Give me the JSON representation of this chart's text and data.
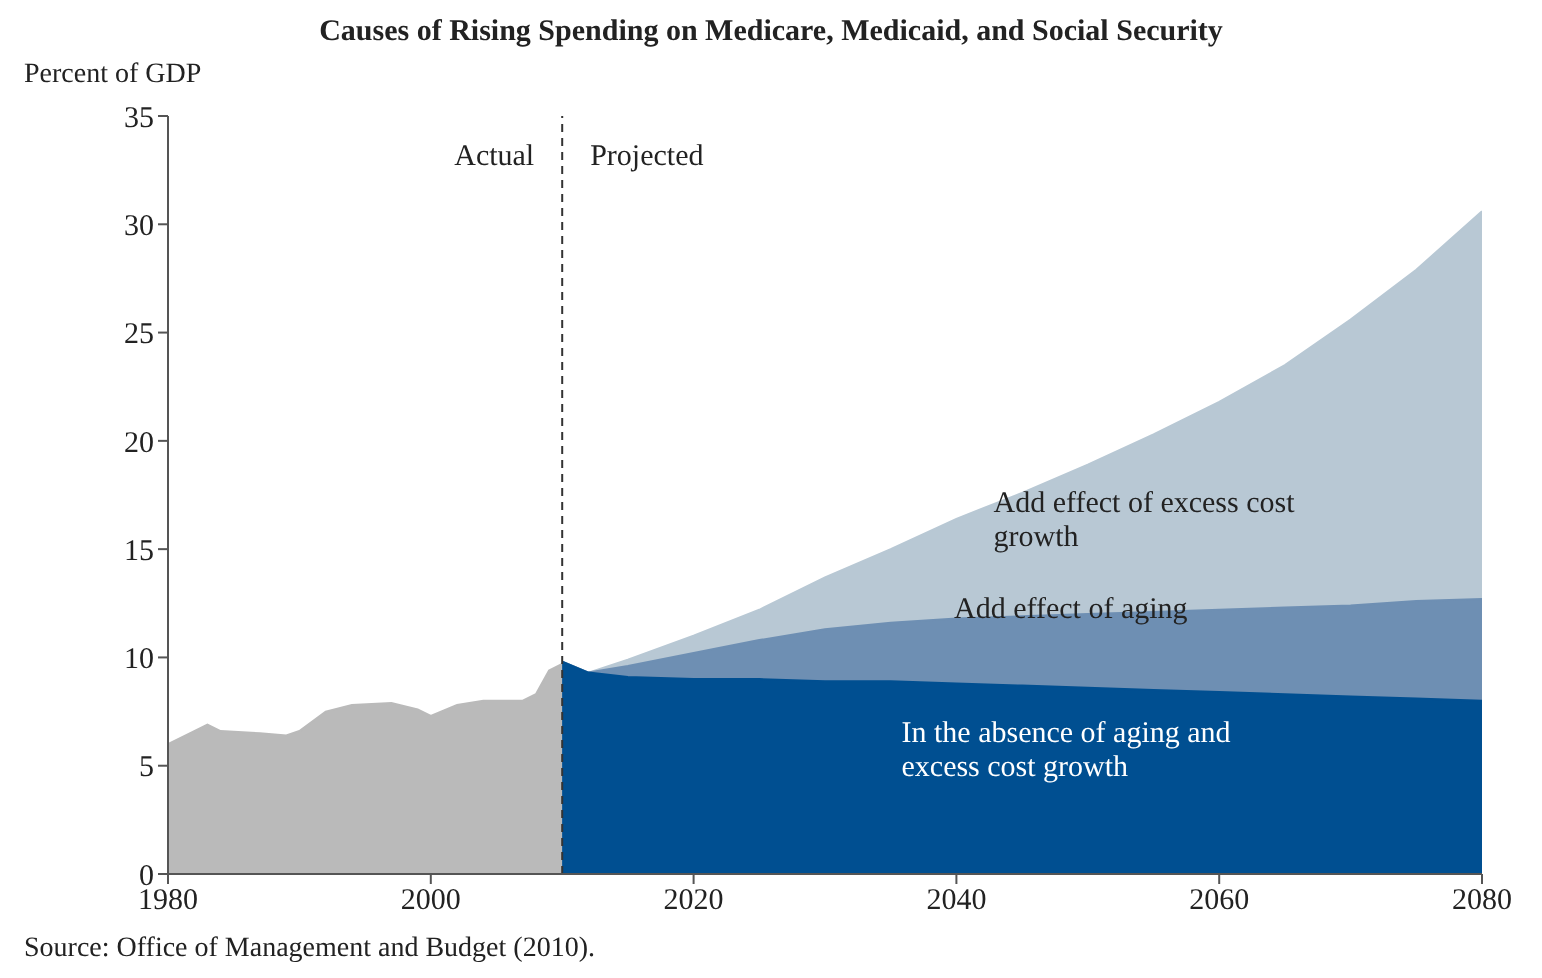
{
  "chart_data": {
    "type": "area",
    "title": "Causes of Rising Spending on Medicare, Medicaid, and Social Security",
    "ylabel": "Percent of GDP",
    "annotations": [
      "Actual",
      "Projected",
      "Source:  Office of Management and Budget (2010)."
    ],
    "xlim": [
      1980,
      2080
    ],
    "xticks": [
      1980,
      2000,
      2020,
      2040,
      2060,
      2080
    ],
    "ylim": [
      0,
      35
    ],
    "yticks": [
      0,
      5,
      10,
      15,
      20,
      25,
      30,
      35
    ],
    "ref_lines": [
      {
        "axis": "x",
        "value": 2010,
        "color": "#333333",
        "line_style": "dashed"
      }
    ],
    "series": [
      {
        "color": "#bababa",
        "x": [
          1980,
          1982,
          1983,
          1984,
          1987,
          1989,
          1990,
          1992,
          1994,
          1997,
          1999,
          2000,
          2002,
          2004,
          2007,
          2008,
          2009,
          2010
        ],
        "values": [
          6.0,
          6.6,
          6.9,
          6.6,
          6.5,
          6.4,
          6.6,
          7.5,
          7.8,
          7.9,
          7.6,
          7.3,
          7.8,
          8.0,
          8.0,
          8.3,
          9.4,
          9.7
        ]
      },
      {
        "name": "Add effect of excess cost growth",
        "color": "#b8c8d4",
        "x": [
          2010,
          2012,
          2015,
          2020,
          2025,
          2030,
          2035,
          2040,
          2045,
          2050,
          2055,
          2060,
          2065,
          2070,
          2075,
          2080
        ],
        "values": [
          9.8,
          9.3,
          9.9,
          11.0,
          12.2,
          13.7,
          15.0,
          16.4,
          17.6,
          18.9,
          20.3,
          21.8,
          23.5,
          25.6,
          27.9,
          30.6
        ]
      },
      {
        "name": "Add effect of aging",
        "color": "#6e8fb3",
        "x": [
          2010,
          2012,
          2015,
          2020,
          2025,
          2030,
          2035,
          2040,
          2045,
          2050,
          2055,
          2060,
          2065,
          2070,
          2075,
          2080
        ],
        "values": [
          9.8,
          9.3,
          9.6,
          10.2,
          10.8,
          11.3,
          11.6,
          11.8,
          11.9,
          12.0,
          12.1,
          12.2,
          12.3,
          12.4,
          12.6,
          12.7
        ]
      },
      {
        "name": "In the absence of aging and excess cost growth",
        "color": "#004f91",
        "x": [
          2010,
          2012,
          2015,
          2020,
          2025,
          2030,
          2035,
          2040,
          2045,
          2050,
          2055,
          2060,
          2065,
          2070,
          2075,
          2080
        ],
        "values": [
          9.8,
          9.3,
          9.1,
          9.0,
          9.0,
          8.9,
          8.9,
          8.8,
          8.7,
          8.6,
          8.5,
          8.4,
          8.3,
          8.2,
          8.1,
          8.0
        ]
      }
    ]
  }
}
